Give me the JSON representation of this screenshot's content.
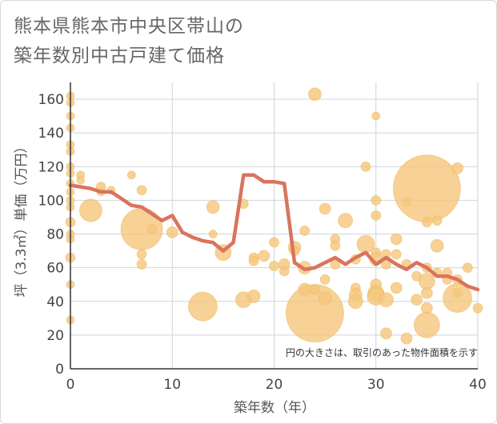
{
  "chart_data": {
    "type": "scatter",
    "title_line1": "熊本県熊本市中央区帯山の",
    "title_line2": "築年数別中古戸建て価格",
    "xlabel": "築年数（年）",
    "ylabel": "坪（3.3㎡）単価（万円）",
    "note": "円の大きさは、取引のあった物件面積を示す",
    "xlim": [
      0,
      40
    ],
    "ylim": [
      0,
      170
    ],
    "xticks": [
      0,
      10,
      20,
      30,
      40
    ],
    "yticks": [
      0,
      20,
      40,
      60,
      80,
      100,
      120,
      140,
      160
    ],
    "grid": true,
    "colors": {
      "bubble": "#f5c77e",
      "bubble_stroke": "#efb75c",
      "line": "#d9745e",
      "grid": "#cdd6dc",
      "axis": "#333333"
    },
    "bubbles": [
      {
        "x": 0,
        "y": 162,
        "s": 5
      },
      {
        "x": 0,
        "y": 158,
        "s": 5
      },
      {
        "x": 0,
        "y": 150,
        "s": 5
      },
      {
        "x": 0,
        "y": 143,
        "s": 5
      },
      {
        "x": 0,
        "y": 133,
        "s": 5
      },
      {
        "x": 0,
        "y": 129,
        "s": 5
      },
      {
        "x": 0,
        "y": 120,
        "s": 5
      },
      {
        "x": 0,
        "y": 116,
        "s": 5
      },
      {
        "x": 0,
        "y": 110,
        "s": 5
      },
      {
        "x": 0,
        "y": 105,
        "s": 5
      },
      {
        "x": 0,
        "y": 100,
        "s": 5
      },
      {
        "x": 0,
        "y": 96,
        "s": 5
      },
      {
        "x": 0,
        "y": 87,
        "s": 6
      },
      {
        "x": 0,
        "y": 80,
        "s": 5
      },
      {
        "x": 0,
        "y": 77,
        "s": 5
      },
      {
        "x": 0,
        "y": 66,
        "s": 6
      },
      {
        "x": 0,
        "y": 50,
        "s": 5
      },
      {
        "x": 0,
        "y": 29,
        "s": 5
      },
      {
        "x": 1,
        "y": 115,
        "s": 5
      },
      {
        "x": 1,
        "y": 112,
        "s": 5
      },
      {
        "x": 2,
        "y": 94,
        "s": 14
      },
      {
        "x": 3,
        "y": 108,
        "s": 6
      },
      {
        "x": 3,
        "y": 105,
        "s": 5
      },
      {
        "x": 4,
        "y": 106,
        "s": 5
      },
      {
        "x": 6,
        "y": 115,
        "s": 5
      },
      {
        "x": 7,
        "y": 106,
        "s": 6
      },
      {
        "x": 7,
        "y": 83,
        "s": 26
      },
      {
        "x": 7,
        "y": 68,
        "s": 6
      },
      {
        "x": 7,
        "y": 62,
        "s": 6
      },
      {
        "x": 8,
        "y": 83,
        "s": 6
      },
      {
        "x": 10,
        "y": 81,
        "s": 7
      },
      {
        "x": 13,
        "y": 37,
        "s": 18
      },
      {
        "x": 14,
        "y": 96,
        "s": 8
      },
      {
        "x": 14,
        "y": 80,
        "s": 5
      },
      {
        "x": 15,
        "y": 69,
        "s": 10
      },
      {
        "x": 17,
        "y": 98,
        "s": 6
      },
      {
        "x": 17,
        "y": 41,
        "s": 10
      },
      {
        "x": 18,
        "y": 66,
        "s": 6
      },
      {
        "x": 18,
        "y": 64,
        "s": 6
      },
      {
        "x": 18,
        "y": 43,
        "s": 8
      },
      {
        "x": 19,
        "y": 67,
        "s": 7
      },
      {
        "x": 20,
        "y": 75,
        "s": 6
      },
      {
        "x": 20,
        "y": 61,
        "s": 6
      },
      {
        "x": 21,
        "y": 62,
        "s": 7
      },
      {
        "x": 21,
        "y": 58,
        "s": 6
      },
      {
        "x": 22,
        "y": 72,
        "s": 8
      },
      {
        "x": 22,
        "y": 70,
        "s": 6
      },
      {
        "x": 23,
        "y": 82,
        "s": 6
      },
      {
        "x": 23,
        "y": 60,
        "s": 8
      },
      {
        "x": 23,
        "y": 47,
        "s": 8
      },
      {
        "x": 24,
        "y": 163,
        "s": 8
      },
      {
        "x": 24,
        "y": 33,
        "s": 36
      },
      {
        "x": 24,
        "y": 47,
        "s": 6
      },
      {
        "x": 25,
        "y": 95,
        "s": 7
      },
      {
        "x": 25,
        "y": 53,
        "s": 6
      },
      {
        "x": 25,
        "y": 42,
        "s": 8
      },
      {
        "x": 26,
        "y": 77,
        "s": 6
      },
      {
        "x": 26,
        "y": 73,
        "s": 6
      },
      {
        "x": 26,
        "y": 62,
        "s": 6
      },
      {
        "x": 27,
        "y": 88,
        "s": 9
      },
      {
        "x": 28,
        "y": 65,
        "s": 6
      },
      {
        "x": 28,
        "y": 48,
        "s": 6
      },
      {
        "x": 28,
        "y": 44,
        "s": 8
      },
      {
        "x": 28,
        "y": 40,
        "s": 9
      },
      {
        "x": 29,
        "y": 120,
        "s": 6
      },
      {
        "x": 29,
        "y": 74,
        "s": 11
      },
      {
        "x": 30,
        "y": 150,
        "s": 5
      },
      {
        "x": 30,
        "y": 100,
        "s": 6
      },
      {
        "x": 30,
        "y": 91,
        "s": 6
      },
      {
        "x": 30,
        "y": 69,
        "s": 6
      },
      {
        "x": 30,
        "y": 65,
        "s": 8
      },
      {
        "x": 30,
        "y": 50,
        "s": 7
      },
      {
        "x": 30,
        "y": 45,
        "s": 10
      },
      {
        "x": 30,
        "y": 43,
        "s": 11
      },
      {
        "x": 31,
        "y": 68,
        "s": 6
      },
      {
        "x": 31,
        "y": 62,
        "s": 6
      },
      {
        "x": 31,
        "y": 41,
        "s": 9
      },
      {
        "x": 31,
        "y": 21,
        "s": 7
      },
      {
        "x": 32,
        "y": 77,
        "s": 7
      },
      {
        "x": 32,
        "y": 68,
        "s": 6
      },
      {
        "x": 32,
        "y": 48,
        "s": 7
      },
      {
        "x": 33,
        "y": 99,
        "s": 6
      },
      {
        "x": 33,
        "y": 62,
        "s": 6
      },
      {
        "x": 33,
        "y": 18,
        "s": 7
      },
      {
        "x": 34,
        "y": 55,
        "s": 6
      },
      {
        "x": 34,
        "y": 41,
        "s": 7
      },
      {
        "x": 35,
        "y": 107,
        "s": 42
      },
      {
        "x": 35,
        "y": 87,
        "s": 6
      },
      {
        "x": 35,
        "y": 60,
        "s": 6
      },
      {
        "x": 35,
        "y": 52,
        "s": 10
      },
      {
        "x": 35,
        "y": 45,
        "s": 7
      },
      {
        "x": 35,
        "y": 36,
        "s": 7
      },
      {
        "x": 35,
        "y": 26,
        "s": 16
      },
      {
        "x": 36,
        "y": 88,
        "s": 6
      },
      {
        "x": 36,
        "y": 73,
        "s": 8
      },
      {
        "x": 36,
        "y": 57,
        "s": 6
      },
      {
        "x": 37,
        "y": 57,
        "s": 6
      },
      {
        "x": 37,
        "y": 53,
        "s": 6
      },
      {
        "x": 38,
        "y": 119,
        "s": 7
      },
      {
        "x": 38,
        "y": 53,
        "s": 6
      },
      {
        "x": 38,
        "y": 45,
        "s": 6
      },
      {
        "x": 38,
        "y": 42,
        "s": 18
      },
      {
        "x": 39,
        "y": 60,
        "s": 6
      },
      {
        "x": 40,
        "y": 36,
        "s": 6
      }
    ],
    "trend": {
      "x": [
        0,
        1,
        2,
        3,
        4,
        5,
        6,
        7,
        8,
        9,
        10,
        11,
        12,
        13,
        14,
        15,
        16,
        17,
        18,
        19,
        20,
        21,
        22,
        23,
        24,
        25,
        26,
        27,
        28,
        29,
        30,
        31,
        32,
        33,
        34,
        35,
        36,
        37,
        38,
        39,
        40
      ],
      "y": [
        109,
        108,
        107,
        105,
        105,
        101,
        97,
        96,
        92,
        88,
        91,
        81,
        78,
        76,
        75,
        70,
        75,
        115,
        115,
        111,
        111,
        110,
        63,
        59,
        60,
        63,
        66,
        62,
        66,
        69,
        62,
        66,
        62,
        59,
        63,
        60,
        55,
        55,
        53,
        49,
        47
      ]
    }
  }
}
